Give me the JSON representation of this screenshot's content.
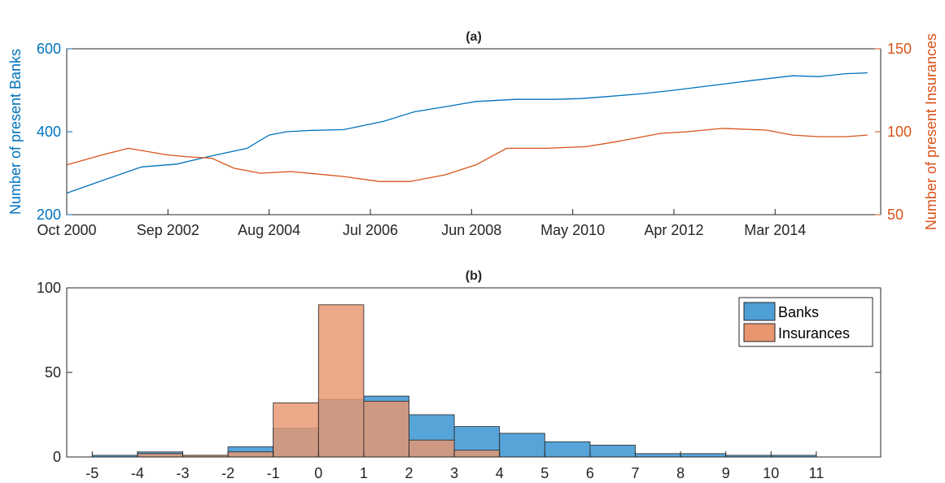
{
  "colors": {
    "banks": "#0072BD",
    "insurances": "#D95319",
    "banks_fill": "#4E9FD6",
    "insurances_fill": "#E89670",
    "axis": "#262626"
  },
  "chart_data": [
    {
      "type": "line",
      "title": "(a)",
      "x_tick_labels": [
        "Oct 2000",
        "Sep 2002",
        "Aug 2004",
        "Jul 2006",
        "Jun 2008",
        "May 2010",
        "Apr 2012",
        "Mar 2014"
      ],
      "x_range": [
        "Oct 2000",
        "Mar 2016"
      ],
      "ylabel_left": "Number of present Banks",
      "ylabel_right": "Number of present Insurances",
      "ylim_left": [
        200,
        600
      ],
      "ylim_right": [
        50,
        150
      ],
      "y_ticks_left": [
        "200",
        "400",
        "600"
      ],
      "y_ticks_right": [
        "50",
        "100",
        "150"
      ],
      "grid": false,
      "series": [
        {
          "axis": "left",
          "x": [
            "Oct 2000",
            "Jun 2001",
            "Mar 2002",
            "Nov 2002",
            "Jul 2003",
            "Mar 2004",
            "Aug 2004",
            "Dec 2004",
            "May 2005",
            "Jan 2006",
            "Oct 2006",
            "May 2007",
            "Jan 2008",
            "Jul 2008",
            "Apr 2009",
            "Jan 2010",
            "Jul 2010",
            "Jan 2011",
            "Sep 2011",
            "Apr 2012",
            "Jan 2013",
            "Oct 2013",
            "Jul 2014",
            "Jan 2015",
            "Jul 2015",
            "Dec 2015"
          ],
          "values": [
            252,
            282,
            315,
            322,
            342,
            360,
            392,
            400,
            403,
            405,
            425,
            448,
            462,
            473,
            478,
            478,
            480,
            485,
            492,
            500,
            512,
            524,
            535,
            533,
            540,
            542
          ]
        },
        {
          "axis": "right",
          "x": [
            "Oct 2000",
            "Jun 2001",
            "Dec 2001",
            "Sep 2002",
            "Jan 2003",
            "Jul 2003",
            "Dec 2003",
            "Jun 2004",
            "Jan 2005",
            "Jan 2006",
            "Sep 2006",
            "Apr 2007",
            "Dec 2007",
            "Jul 2008",
            "Feb 2009",
            "Nov 2009",
            "Aug 2010",
            "Mar 2011",
            "Jan 2012",
            "Jul 2012",
            "Mar 2013",
            "Jan 2014",
            "Jul 2014",
            "Jan 2015",
            "Jul 2015",
            "Dec 2015"
          ],
          "values": [
            80,
            86,
            90,
            86,
            85,
            84,
            78,
            75,
            76,
            73,
            70,
            70,
            74,
            80,
            90,
            90,
            91,
            94,
            99,
            100,
            102,
            101,
            98,
            97,
            97,
            98
          ]
        }
      ]
    },
    {
      "type": "bar",
      "subtype": "histogram",
      "title": "(b)",
      "bin_edges": [
        -5,
        -4,
        -3,
        -2,
        -1,
        0,
        1,
        2,
        3,
        4,
        5,
        6,
        7,
        8,
        9,
        10,
        11
      ],
      "x_tick_labels": [
        "-5",
        "-4",
        "-3",
        "-2",
        "-1",
        "0",
        "1",
        "2",
        "3",
        "4",
        "5",
        "6",
        "7",
        "8",
        "9",
        "10",
        "11"
      ],
      "ylim": [
        0,
        100
      ],
      "y_ticks": [
        "0",
        "50",
        "100"
      ],
      "grid": false,
      "legend_position": "top-right",
      "series": [
        {
          "name": "Banks",
          "values": [
            1,
            3,
            1,
            6,
            17,
            34,
            36,
            25,
            18,
            14,
            9,
            7,
            2,
            2,
            1,
            1
          ]
        },
        {
          "name": "Insurances",
          "values": [
            0,
            2,
            1,
            3,
            32,
            90,
            33,
            10,
            4,
            0,
            0,
            0,
            0,
            0,
            0,
            0
          ]
        }
      ]
    }
  ]
}
